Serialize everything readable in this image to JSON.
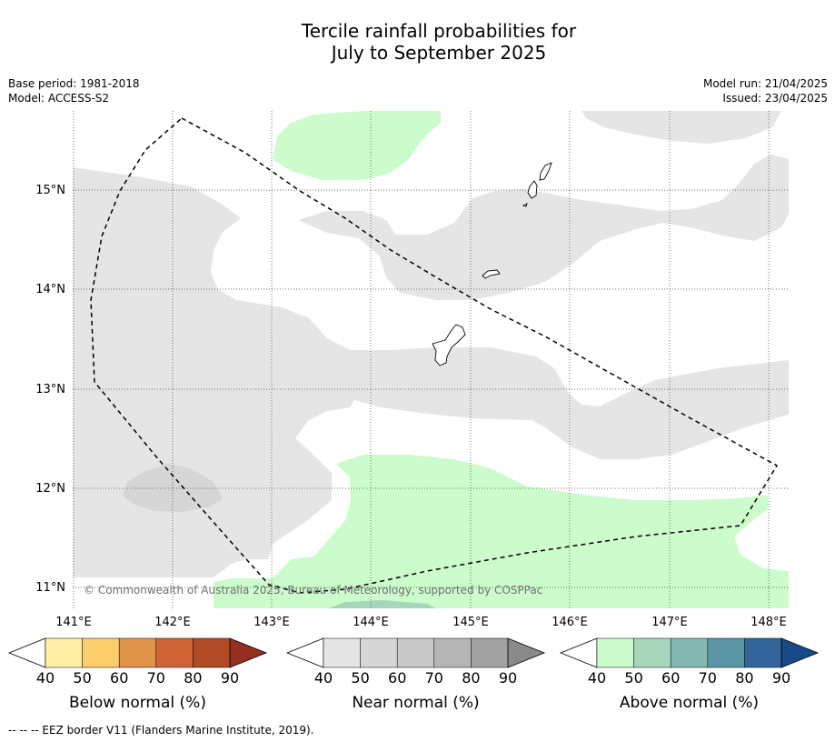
{
  "title_line1": "Tercile rainfall probabilities for",
  "title_line2": "July to September 2025",
  "base_period": "Base period: 1981-2018",
  "model": "Model: ACCESS-S2",
  "model_run": "Model run: 21/04/2025",
  "issued": "Issued: 23/04/2025",
  "map": {
    "lon_labels": [
      "141°E",
      "142°E",
      "143°E",
      "144°E",
      "145°E",
      "146°E",
      "147°E",
      "148°E"
    ],
    "lat_labels": [
      "15°N",
      "14°N",
      "13°N",
      "12°N",
      "11°N"
    ],
    "copyright": "© Commonwealth of Australia 2025, Bureau of Meteorology, supported by COSPPac",
    "colors": {
      "near_normal_40": "#e5e5e5",
      "above_normal_40": "#ccfccc",
      "above_normal_50": "#a6d6bc",
      "ocean": "#ffffff",
      "eez": "#000000"
    }
  },
  "legends": [
    {
      "title": "Below normal (%)",
      "ticks": [
        "40",
        "50",
        "60",
        "70",
        "80",
        "90"
      ],
      "colors": [
        "#ffffff",
        "#ffefa4",
        "#fdcd6b",
        "#e0944a",
        "#cf6434",
        "#b04a27",
        "#953020"
      ]
    },
    {
      "title": "Near normal (%)",
      "ticks": [
        "40",
        "50",
        "60",
        "70",
        "80",
        "90"
      ],
      "colors": [
        "#ffffff",
        "#e5e5e5",
        "#d6d6d6",
        "#c8c8c8",
        "#b5b5b5",
        "#a2a2a2",
        "#8a8a8a"
      ]
    },
    {
      "title": "Above normal (%)",
      "ticks": [
        "40",
        "50",
        "60",
        "70",
        "80",
        "90"
      ],
      "colors": [
        "#ffffff",
        "#ccfccc",
        "#a6d6bc",
        "#84b8b0",
        "#5a96a4",
        "#33649a",
        "#174a86"
      ]
    }
  ],
  "footnote": "-- -- -- EEZ border V11 (Flanders Marine Institute, 2019)."
}
